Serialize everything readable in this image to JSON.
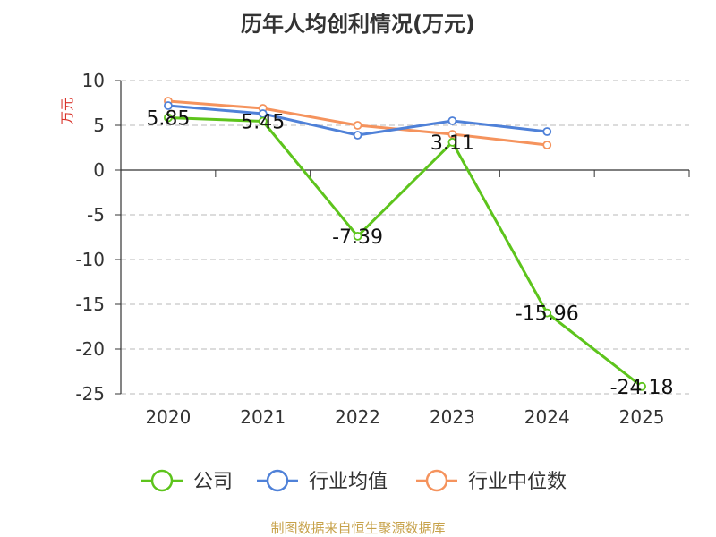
{
  "chart_data": {
    "type": "line",
    "title": "历年人均创利情况(万元)",
    "ylabel": "万元",
    "xlabel": "",
    "categories": [
      "2020",
      "2021",
      "2022",
      "2023",
      "2024",
      "2025"
    ],
    "ylim": [
      -25,
      10
    ],
    "yticks": [
      10,
      5,
      0,
      -5,
      -10,
      -15,
      -20,
      -25
    ],
    "ytick_labels": [
      "10",
      "5",
      "0",
      "-5",
      "-10",
      "-15",
      "-20",
      "-25"
    ],
    "grid": true,
    "legend_position": "bottom",
    "series": [
      {
        "name": "公司",
        "color": "#5dc41c",
        "values": [
          5.85,
          5.45,
          -7.39,
          3.11,
          -15.96,
          -24.18
        ],
        "data_labels": [
          "5.85",
          "5.45",
          "-7.39",
          "3.11",
          "-15.96",
          "-24.18"
        ]
      },
      {
        "name": "行业均值",
        "color": "#4f81d8",
        "values": [
          7.2,
          6.3,
          3.9,
          5.5,
          4.3,
          null
        ]
      },
      {
        "name": "行业中位数",
        "color": "#f5935d",
        "values": [
          7.7,
          6.9,
          5.0,
          4.0,
          2.8,
          null
        ]
      }
    ],
    "source": "制图数据来自恒生聚源数据库"
  },
  "colors": {
    "source_text": "#c7a24a",
    "ylabel_text": "#d9342b",
    "grid": "#c8c8c8",
    "axis": "#333333"
  }
}
